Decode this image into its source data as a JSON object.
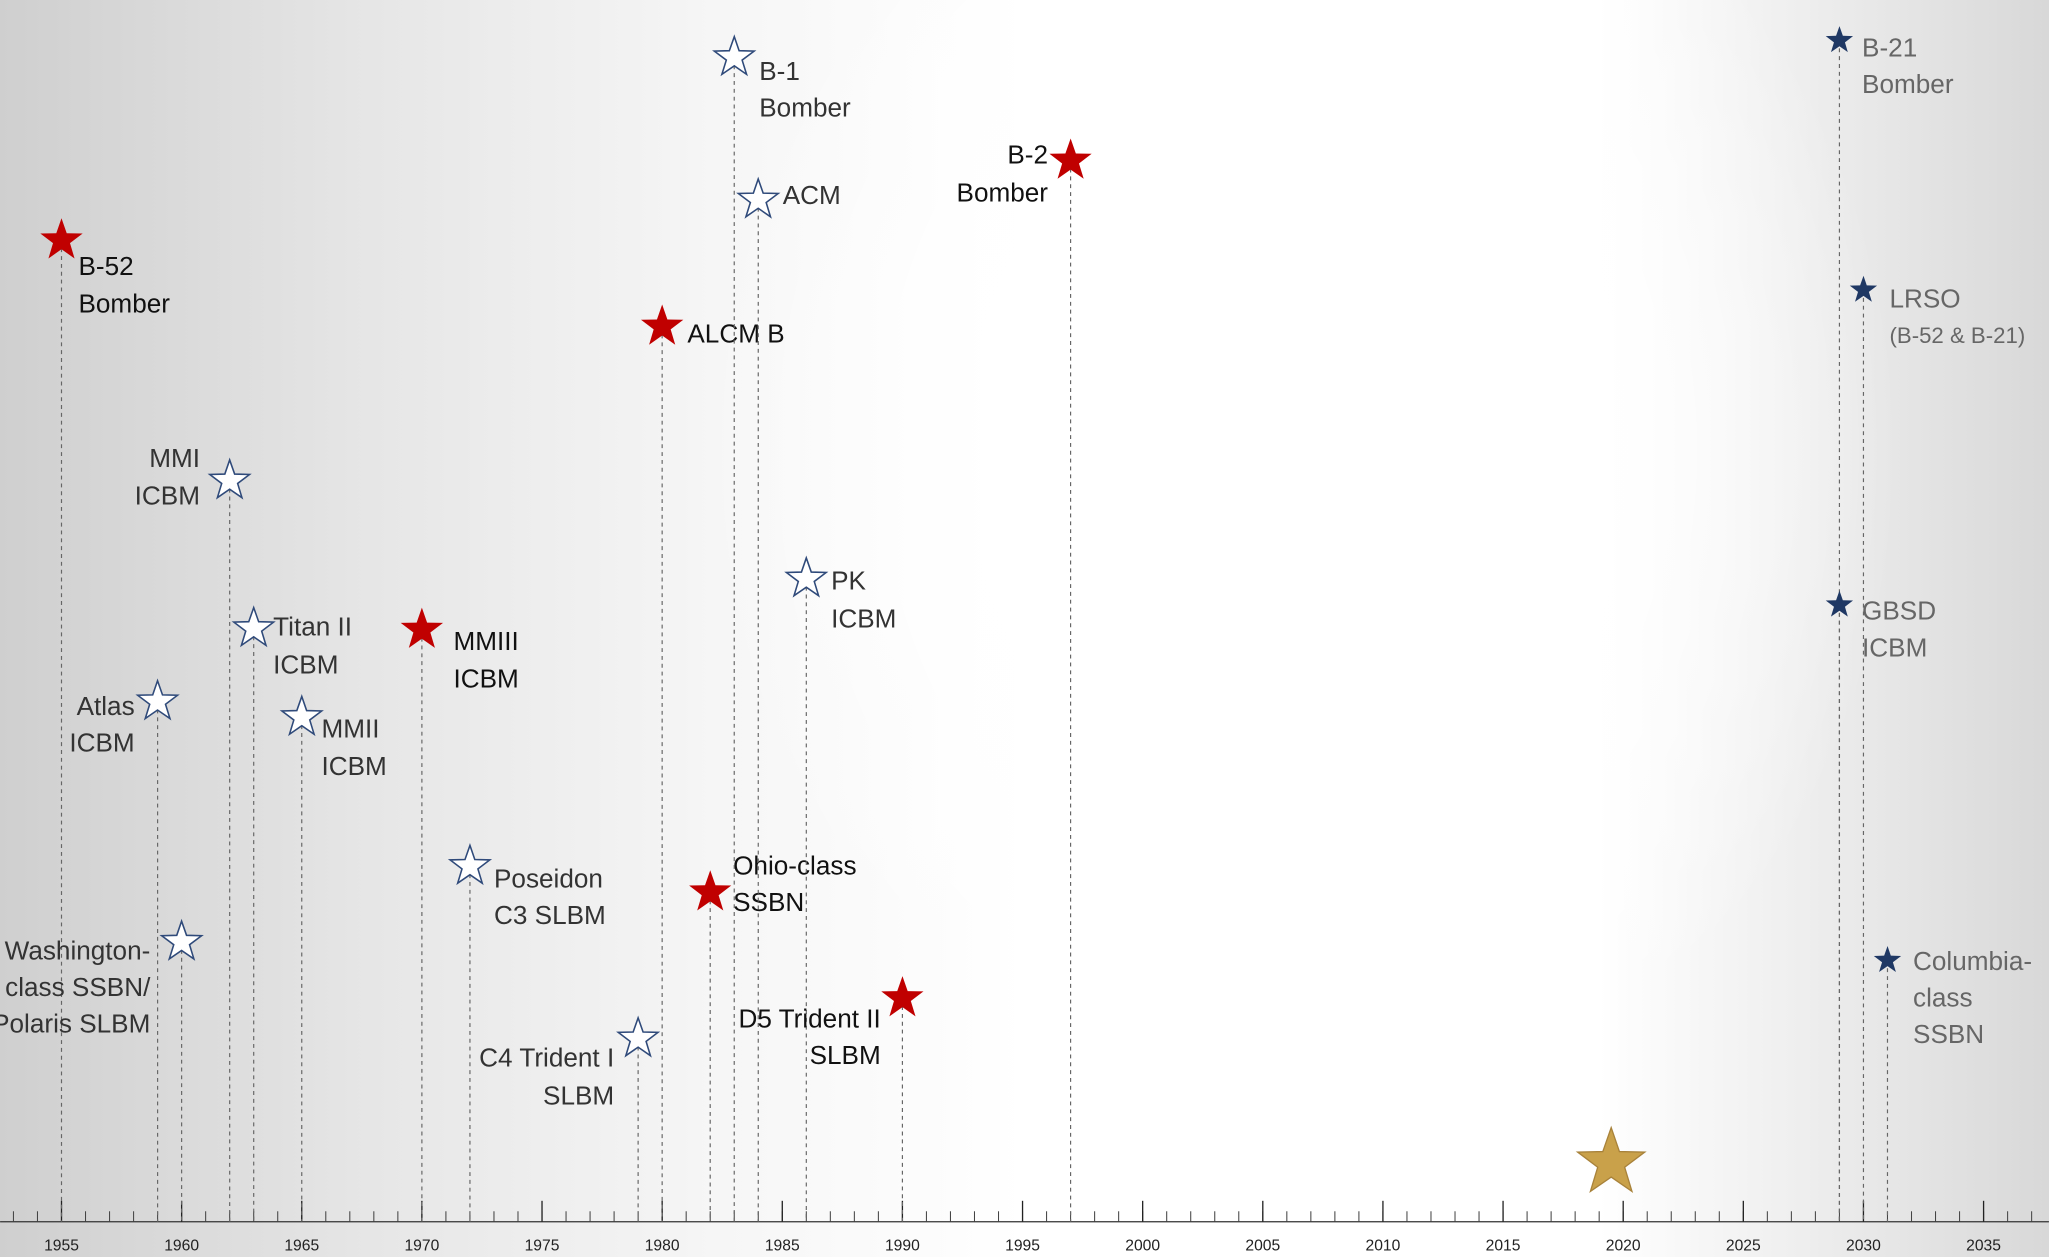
{
  "chart_data": {
    "type": "timeline",
    "xlim": [
      1955,
      2035
    ],
    "xticks": [
      1955,
      1960,
      1965,
      1970,
      1975,
      1980,
      1985,
      1990,
      1995,
      2000,
      2005,
      2010,
      2015,
      2020,
      2025,
      2030,
      2035
    ],
    "xminorstep": 1,
    "events": [
      {
        "label": [
          "B-52",
          "Bomber"
        ],
        "year": 1955,
        "color": "#c00000"
      },
      {
        "label": [
          "Atlas",
          "ICBM"
        ],
        "year": 1959,
        "color": "#ffffff"
      },
      {
        "label": [
          "Washington-",
          "class SSBN/",
          "Polaris SLBM"
        ],
        "year": 1960,
        "color": "#ffffff"
      },
      {
        "label": [
          "MMI",
          "ICBM"
        ],
        "year": 1962,
        "color": "#ffffff"
      },
      {
        "label": [
          "Titan II",
          "ICBM"
        ],
        "year": 1963,
        "color": "#ffffff"
      },
      {
        "label": [
          "MMII",
          "ICBM"
        ],
        "year": 1965,
        "color": "#ffffff"
      },
      {
        "label": [
          "MMIII",
          "ICBM"
        ],
        "year": 1970,
        "color": "#c00000"
      },
      {
        "label": [
          "Poseidon",
          "C3 SLBM"
        ],
        "year": 1972,
        "color": "#ffffff"
      },
      {
        "label": [
          "C4 Trident I",
          "SLBM"
        ],
        "year": 1979,
        "color": "#ffffff"
      },
      {
        "label": [
          "ALCM B"
        ],
        "year": 1980,
        "color": "#c00000"
      },
      {
        "label": [
          "Ohio-class",
          "SSBN"
        ],
        "year": 1982,
        "color": "#c00000"
      },
      {
        "label": [
          "B-1",
          "Bomber"
        ],
        "year": 1983,
        "color": "#ffffff"
      },
      {
        "label": [
          "ACM"
        ],
        "year": 1984,
        "color": "#ffffff"
      },
      {
        "label": [
          "PK",
          "ICBM"
        ],
        "year": 1986,
        "color": "#ffffff"
      },
      {
        "label": [
          "D5 Trident II",
          "SLBM"
        ],
        "year": 1990,
        "color": "#c00000"
      },
      {
        "label": [
          "B-2",
          "Bomber"
        ],
        "year": 1997,
        "color": "#c00000"
      },
      {
        "label": [
          "B-21",
          "Bomber"
        ],
        "year": 2029,
        "color": "#1f3864"
      },
      {
        "label": [
          "LRSO",
          "(B-52 & B-21)"
        ],
        "year": 2030,
        "color": "#1f3864"
      },
      {
        "label": [
          "GBSD",
          "ICBM"
        ],
        "year": 2029,
        "color": "#1f3864"
      },
      {
        "label": [
          "Columbia-",
          "class",
          "SSBN"
        ],
        "year": 2031,
        "color": "#1f3864"
      },
      {
        "year": 2019.5,
        "color": "#c9a14a"
      }
    ]
  }
}
